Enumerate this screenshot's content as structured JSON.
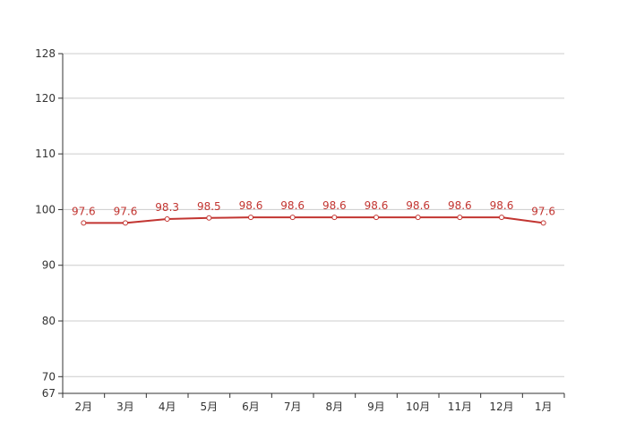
{
  "chart_data": {
    "type": "line",
    "title": "",
    "xlabel": "",
    "ylabel": "",
    "categories": [
      "2月",
      "3月",
      "4月",
      "5月",
      "6月",
      "7月",
      "8月",
      "9月",
      "10月",
      "11月",
      "12月",
      "1月"
    ],
    "series": [
      {
        "values": [
          97.6,
          97.6,
          98.3,
          98.5,
          98.6,
          98.6,
          98.6,
          98.6,
          98.6,
          98.6,
          98.6,
          97.6
        ],
        "color": "#c23531"
      }
    ],
    "ylim": [
      67,
      128
    ],
    "yticks": [
      67,
      70,
      80,
      90,
      100,
      110,
      120,
      128
    ],
    "grid": true,
    "legend": "none",
    "data_labels": [
      "97.6",
      "97.6",
      "98.3",
      "98.5",
      "98.6",
      "98.6",
      "98.6",
      "98.6",
      "98.6",
      "98.6",
      "98.6",
      "97.6"
    ]
  }
}
